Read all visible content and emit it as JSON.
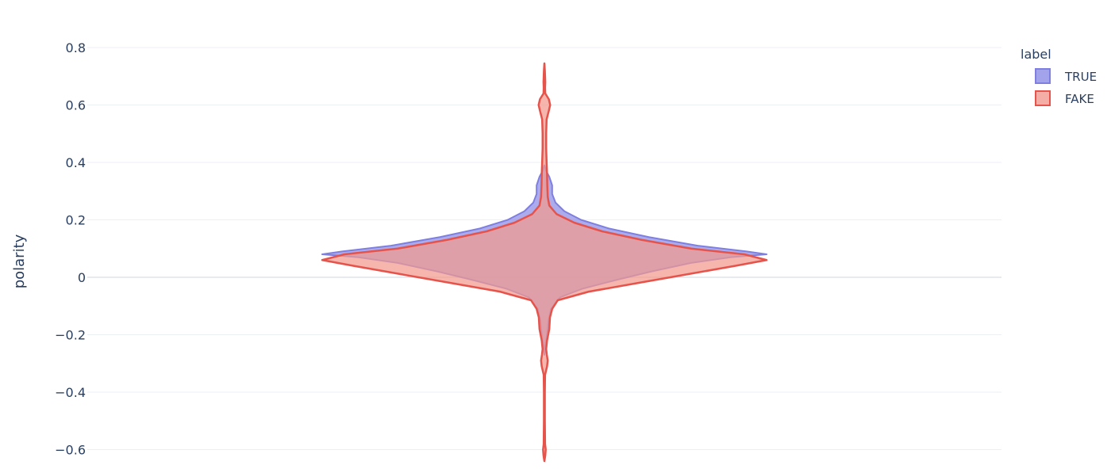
{
  "chart_data": {
    "type": "violin",
    "title": "",
    "xlabel": "",
    "ylabel": "polarity",
    "ylim": [
      -0.64,
      0.8
    ],
    "yticks": [
      {
        "value": 0.8,
        "label": "0.8"
      },
      {
        "value": 0.6,
        "label": "0.6"
      },
      {
        "value": 0.4,
        "label": "0.4"
      },
      {
        "value": 0.2,
        "label": "0.2"
      },
      {
        "value": 0,
        "label": "0"
      },
      {
        "value": -0.2,
        "label": "−0.2"
      },
      {
        "value": -0.4,
        "label": "−0.4"
      },
      {
        "value": -0.6,
        "label": "−0.6"
      }
    ],
    "grid": true,
    "legend": {
      "title": "label",
      "position": "top-right"
    },
    "series": [
      {
        "name": "TRUE",
        "fill": "#8c8ce6",
        "fill_opacity": 0.72,
        "line": "#7f7fe0",
        "density": [
          [
            -0.27,
            0.0
          ],
          [
            -0.24,
            0.004
          ],
          [
            -0.21,
            0.01
          ],
          [
            -0.18,
            0.014
          ],
          [
            -0.15,
            0.018
          ],
          [
            -0.11,
            0.03
          ],
          [
            -0.07,
            0.07
          ],
          [
            -0.04,
            0.17
          ],
          [
            -0.01,
            0.32
          ],
          [
            0.02,
            0.48
          ],
          [
            0.05,
            0.66
          ],
          [
            0.07,
            0.84
          ],
          [
            0.08,
            1.0
          ],
          [
            0.09,
            0.91
          ],
          [
            0.11,
            0.69
          ],
          [
            0.14,
            0.47
          ],
          [
            0.17,
            0.29
          ],
          [
            0.2,
            0.165
          ],
          [
            0.23,
            0.09
          ],
          [
            0.26,
            0.05
          ],
          [
            0.29,
            0.035
          ],
          [
            0.32,
            0.035
          ],
          [
            0.35,
            0.022
          ],
          [
            0.37,
            0.008
          ],
          [
            0.39,
            0.0
          ]
        ]
      },
      {
        "name": "FAKE",
        "fill": "#f29a8e",
        "fill_opacity": 0.72,
        "line": "#e5534b",
        "density": [
          [
            -0.64,
            0.0
          ],
          [
            -0.62,
            0.004
          ],
          [
            -0.6,
            0.006
          ],
          [
            -0.58,
            0.003
          ],
          [
            -0.5,
            0.002
          ],
          [
            -0.4,
            0.002
          ],
          [
            -0.34,
            0.003
          ],
          [
            -0.31,
            0.012
          ],
          [
            -0.29,
            0.015
          ],
          [
            -0.27,
            0.011
          ],
          [
            -0.25,
            0.008
          ],
          [
            -0.22,
            0.012
          ],
          [
            -0.18,
            0.022
          ],
          [
            -0.14,
            0.025
          ],
          [
            -0.11,
            0.035
          ],
          [
            -0.08,
            0.06
          ],
          [
            -0.05,
            0.2
          ],
          [
            -0.02,
            0.42
          ],
          [
            0.01,
            0.64
          ],
          [
            0.04,
            0.86
          ],
          [
            0.06,
            1.0
          ],
          [
            0.08,
            0.9
          ],
          [
            0.1,
            0.66
          ],
          [
            0.13,
            0.44
          ],
          [
            0.16,
            0.26
          ],
          [
            0.19,
            0.135
          ],
          [
            0.22,
            0.055
          ],
          [
            0.25,
            0.022
          ],
          [
            0.28,
            0.015
          ],
          [
            0.32,
            0.013
          ],
          [
            0.36,
            0.012
          ],
          [
            0.4,
            0.01
          ],
          [
            0.45,
            0.008
          ],
          [
            0.5,
            0.008
          ],
          [
            0.55,
            0.01
          ],
          [
            0.58,
            0.02
          ],
          [
            0.6,
            0.026
          ],
          [
            0.62,
            0.02
          ],
          [
            0.64,
            0.004
          ],
          [
            0.66,
            0.003
          ],
          [
            0.68,
            0.004
          ],
          [
            0.7,
            0.003
          ],
          [
            0.72,
            0.002
          ],
          [
            0.745,
            0.0
          ]
        ]
      }
    ]
  }
}
